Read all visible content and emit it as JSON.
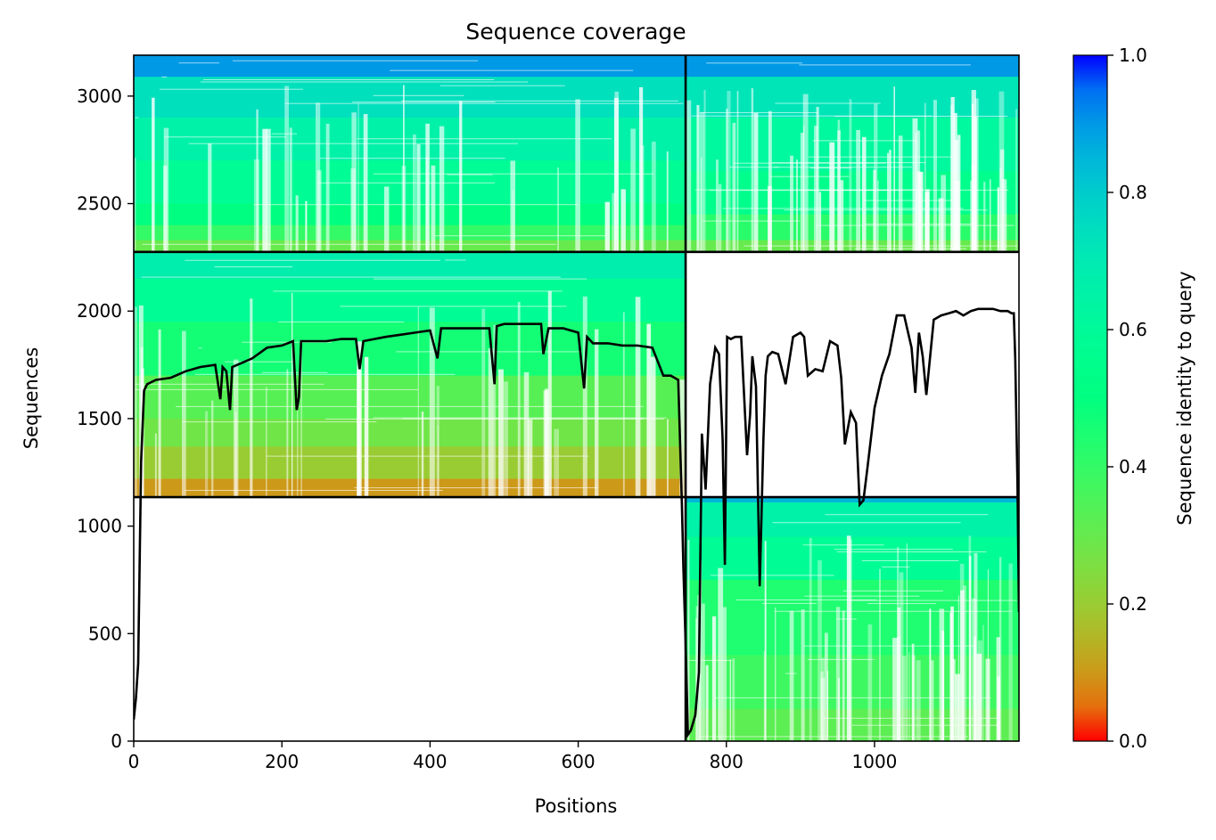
{
  "chart_data": {
    "type": "heatmap",
    "title": "Sequence coverage",
    "xlabel": "Positions",
    "ylabel": "Sequences",
    "xlim": [
      0,
      1195
    ],
    "ylim": [
      0,
      3190
    ],
    "xticks": [
      0,
      200,
      400,
      600,
      800,
      1000
    ],
    "yticks": [
      0,
      500,
      1000,
      1500,
      2000,
      2500,
      3000
    ],
    "colorbar": {
      "label": "Sequence identity to query",
      "range": [
        0,
        1
      ],
      "ticks": [
        "0.0",
        "0.2",
        "0.4",
        "0.6",
        "0.8",
        "1.0"
      ],
      "colormap": "rainbow_r"
    },
    "divider_x": 745,
    "divider_y": [
      1135,
      2275
    ],
    "blocks": [
      {
        "name": "top-left",
        "x": [
          0,
          745
        ],
        "y": [
          2275,
          3190
        ],
        "bands": [
          {
            "y": [
              3090,
              3190
            ],
            "identity": 0.9
          },
          {
            "y": [
              2900,
              3090
            ],
            "identity": 0.74
          },
          {
            "y": [
              2700,
              2900
            ],
            "identity": 0.66
          },
          {
            "y": [
              2500,
              2700
            ],
            "identity": 0.58
          },
          {
            "y": [
              2400,
              2500
            ],
            "identity": 0.5
          },
          {
            "y": [
              2330,
              2400
            ],
            "identity": 0.4
          },
          {
            "y": [
              2275,
              2330
            ],
            "identity": 0.3
          }
        ]
      },
      {
        "name": "top-right",
        "x": [
          745,
          1195
        ],
        "y": [
          2275,
          3190
        ],
        "bands": [
          {
            "y": [
              3090,
              3190
            ],
            "identity": 0.9
          },
          {
            "y": [
              2900,
              3090
            ],
            "identity": 0.72
          },
          {
            "y": [
              2650,
              2900
            ],
            "identity": 0.62
          },
          {
            "y": [
              2450,
              2650
            ],
            "identity": 0.55
          },
          {
            "y": [
              2330,
              2450
            ],
            "identity": 0.42
          },
          {
            "y": [
              2275,
              2330
            ],
            "identity": 0.3
          }
        ]
      },
      {
        "name": "middle-left",
        "x": [
          0,
          745
        ],
        "y": [
          1135,
          2275
        ],
        "bands": [
          {
            "y": [
              2150,
              2275
            ],
            "identity": 0.68
          },
          {
            "y": [
              1950,
              2150
            ],
            "identity": 0.58
          },
          {
            "y": [
              1700,
              1950
            ],
            "identity": 0.46
          },
          {
            "y": [
              1500,
              1700
            ],
            "identity": 0.33
          },
          {
            "y": [
              1370,
              1500
            ],
            "identity": 0.28
          },
          {
            "y": [
              1220,
              1370
            ],
            "identity": 0.2
          },
          {
            "y": [
              1135,
              1220
            ],
            "identity": 0.1
          }
        ]
      },
      {
        "name": "bottom-right",
        "x": [
          745,
          1195
        ],
        "y": [
          0,
          1135
        ],
        "bands": [
          {
            "y": [
              1110,
              1135
            ],
            "identity": 0.85
          },
          {
            "y": [
              950,
              1110
            ],
            "identity": 0.66
          },
          {
            "y": [
              750,
              950
            ],
            "identity": 0.58
          },
          {
            "y": [
              400,
              750
            ],
            "identity": 0.44
          },
          {
            "y": [
              150,
              400
            ],
            "identity": 0.38
          },
          {
            "y": [
              0,
              150
            ],
            "identity": 0.32
          }
        ]
      }
    ],
    "coverage_line": {
      "x": [
        0,
        3,
        6,
        10,
        14,
        18,
        30,
        50,
        70,
        90,
        110,
        117,
        120,
        125,
        130,
        133,
        140,
        160,
        180,
        200,
        215,
        220,
        223,
        226,
        240,
        260,
        280,
        300,
        305,
        310,
        340,
        360,
        380,
        400,
        410,
        415,
        420,
        440,
        470,
        480,
        487,
        490,
        500,
        530,
        550,
        553,
        560,
        580,
        600,
        608,
        612,
        620,
        640,
        660,
        680,
        700,
        715,
        725,
        735,
        740,
        742,
        745,
        748,
        752,
        758,
        763,
        767,
        772,
        778,
        785,
        790,
        795,
        798,
        801,
        806,
        812,
        820,
        828,
        832,
        835,
        840,
        845,
        850,
        853,
        856,
        862,
        870,
        880,
        890,
        900,
        905,
        910,
        920,
        930,
        940,
        950,
        955,
        960,
        968,
        975,
        980,
        985,
        990,
        1000,
        1010,
        1020,
        1030,
        1040,
        1050,
        1055,
        1060,
        1065,
        1070,
        1080,
        1090,
        1100,
        1110,
        1120,
        1130,
        1140,
        1150,
        1160,
        1170,
        1180,
        1185,
        1188,
        1190,
        1193,
        1195
      ],
      "y": [
        100,
        200,
        360,
        1300,
        1630,
        1660,
        1680,
        1690,
        1720,
        1740,
        1750,
        1590,
        1740,
        1720,
        1540,
        1740,
        1750,
        1780,
        1830,
        1840,
        1860,
        1540,
        1600,
        1860,
        1860,
        1860,
        1870,
        1870,
        1730,
        1860,
        1880,
        1890,
        1900,
        1910,
        1780,
        1920,
        1920,
        1920,
        1920,
        1920,
        1660,
        1930,
        1940,
        1940,
        1940,
        1800,
        1920,
        1920,
        1900,
        1640,
        1880,
        1850,
        1850,
        1840,
        1840,
        1830,
        1700,
        1700,
        1680,
        1100,
        800,
        450,
        30,
        50,
        120,
        320,
        1430,
        1170,
        1660,
        1830,
        1800,
        1400,
        820,
        1880,
        1870,
        1880,
        1880,
        1330,
        1520,
        1790,
        1650,
        720,
        1400,
        1700,
        1790,
        1810,
        1800,
        1660,
        1880,
        1900,
        1880,
        1700,
        1730,
        1720,
        1860,
        1840,
        1690,
        1380,
        1530,
        1480,
        1100,
        1120,
        1260,
        1550,
        1700,
        1800,
        1980,
        1980,
        1830,
        1620,
        1900,
        1790,
        1610,
        1960,
        1980,
        1990,
        2000,
        1980,
        2000,
        2010,
        2010,
        2010,
        2000,
        2000,
        1990,
        1990,
        1780,
        1200,
        600
      ]
    }
  }
}
